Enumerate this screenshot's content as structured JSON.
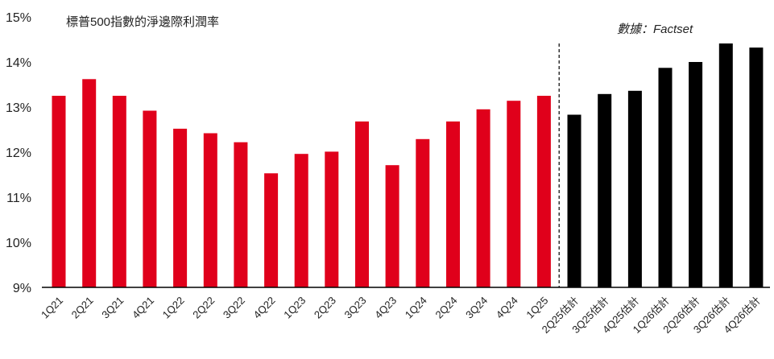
{
  "chart_data": {
    "type": "bar",
    "title": "標普500指數的淨邊際利潤率",
    "source_note": "數據：Factset",
    "categories": [
      "1Q21",
      "2Q21",
      "3Q21",
      "4Q21",
      "1Q22",
      "2Q22",
      "3Q22",
      "4Q22",
      "1Q23",
      "2Q23",
      "3Q23",
      "4Q23",
      "1Q24",
      "2Q24",
      "3Q24",
      "4Q24",
      "1Q25",
      "2Q25估計",
      "3Q25估計",
      "4Q25估計",
      "1Q26估計",
      "2Q26估計",
      "3Q26估計",
      "4Q26估計"
    ],
    "values": [
      13.25,
      13.62,
      13.25,
      12.92,
      12.52,
      12.42,
      12.22,
      11.53,
      11.96,
      12.01,
      12.68,
      11.71,
      12.29,
      12.68,
      12.95,
      13.14,
      13.25,
      12.83,
      13.29,
      13.36,
      13.87,
      14.0,
      14.41,
      14.32
    ],
    "series_split": {
      "actual_count": 17,
      "estimate_count": 7
    },
    "colors": {
      "actual": "#e0001b",
      "estimate": "#000000",
      "axis": "#000000",
      "text": "#222222"
    },
    "ylim": [
      9,
      15
    ],
    "y_ticks": [
      "9%",
      "10%",
      "11%",
      "12%",
      "13%",
      "14%",
      "15%"
    ],
    "y_tick_values": [
      9,
      10,
      11,
      12,
      13,
      14,
      15
    ],
    "grid": false,
    "divider": "dashed vertical line between actual and estimate"
  }
}
